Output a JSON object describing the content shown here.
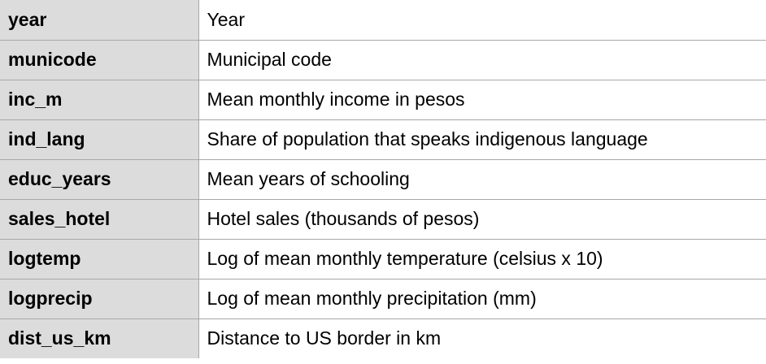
{
  "variables": [
    {
      "name": "year",
      "description": "Year"
    },
    {
      "name": "municode",
      "description": "Municipal code"
    },
    {
      "name": "inc_m",
      "description": "Mean monthly income in pesos"
    },
    {
      "name": "ind_lang",
      "description": "Share of population that speaks indigenous language"
    },
    {
      "name": "educ_years",
      "description": "Mean years of schooling"
    },
    {
      "name": "sales_hotel",
      "description": "Hotel sales (thousands of pesos)"
    },
    {
      "name": "logtemp",
      "description": "Log of mean monthly temperature (celsius x 10)"
    },
    {
      "name": "logprecip",
      "description": "Log of mean monthly precipitation (mm)"
    },
    {
      "name": "dist_us_km",
      "description": "Distance to US border in km"
    }
  ],
  "colors": {
    "name_column_background": "#dcdcdc",
    "grid_lines": "#a8a8a8"
  }
}
